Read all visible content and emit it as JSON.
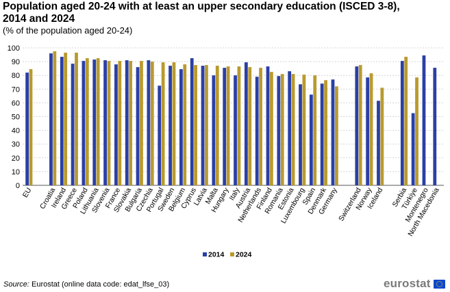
{
  "header": {
    "title": "Population aged 20-24 with at least an upper secondary education (ISCED 3-8), 2014 and 2024",
    "subtitle": "(% of the population aged 20-24)"
  },
  "footer": {
    "source_label": "Source:",
    "source_text": "Eurostat (online data code: edat_lfse_03)",
    "logo_text": "eurostat"
  },
  "colors": {
    "s2014": "#2a3fa6",
    "s2024": "#b99a2f",
    "grid": "#d4d4d4",
    "axis": "#555555"
  },
  "chart_data": {
    "type": "bar",
    "title": "Population aged 20-24 with at least an upper secondary education (ISCED 3-8), 2014 and 2024",
    "subtitle": "(% of the population aged 20-24)",
    "xlabel": "",
    "ylabel": "",
    "ylim": [
      0,
      100
    ],
    "yticks": [
      0,
      10,
      20,
      30,
      40,
      50,
      60,
      70,
      80,
      90,
      100
    ],
    "grid": true,
    "legend_position": "bottom-center",
    "groups": [
      1,
      27,
      3,
      4
    ],
    "categories": [
      "EU",
      "Croatia",
      "Ireland",
      "Greece",
      "Poland",
      "Lithuania",
      "Slovenia",
      "France",
      "Slovakia",
      "Bulgaria",
      "Czechia",
      "Portugal",
      "Sweden",
      "Belgium",
      "Cyprus",
      "Latvia",
      "Malta",
      "Hungary",
      "Italy",
      "Austria",
      "Netherlands",
      "Finland",
      "Romania",
      "Estonia",
      "Luxembourg",
      "Spain",
      "Denmark",
      "Germany",
      "Switzerland",
      "Norway",
      "Iceland",
      "Serbia",
      "Türkiye",
      "Montenegro",
      "North Macedonia"
    ],
    "series": [
      {
        "name": "2014",
        "values": [
          82,
          96,
          93.5,
          88.5,
          90.5,
          91.5,
          91,
          88,
          91,
          86,
          91,
          72.5,
          87,
          84.5,
          92.5,
          87,
          80,
          85.5,
          80,
          89.5,
          79,
          86.5,
          79.5,
          83,
          73.5,
          66,
          74,
          77,
          86.5,
          78.5,
          61.5,
          90.5,
          52.5,
          94.5,
          85.5
        ]
      },
      {
        "name": "2024",
        "values": [
          84.5,
          97.5,
          96.5,
          96.5,
          92.5,
          92.5,
          90.5,
          90.5,
          90.5,
          90.5,
          90,
          89.5,
          89.5,
          88,
          87.5,
          87.5,
          87,
          86.5,
          86.5,
          86,
          85.5,
          82.5,
          81,
          81,
          80.5,
          80,
          76.5,
          72,
          87.5,
          81.5,
          71,
          93.5,
          78.5,
          null,
          null
        ]
      }
    ]
  }
}
